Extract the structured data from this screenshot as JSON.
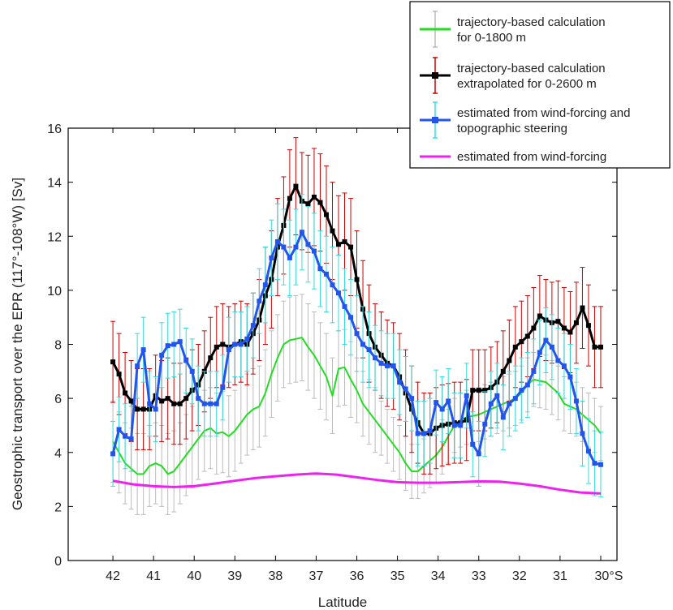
{
  "chart_data": {
    "type": "line",
    "xlabel": "Latitude",
    "ylabel": "Geostrophic transport over the EPR (117°-108°W) [Sv]",
    "xlim": [
      43.1,
      29.6
    ],
    "ylim": [
      0,
      16
    ],
    "xticks": [
      42,
      41,
      40,
      39,
      38,
      37,
      36,
      35,
      34,
      33,
      32,
      31,
      30
    ],
    "xtick_labels": [
      "42",
      "41",
      "40",
      "39",
      "38",
      "37",
      "36",
      "35",
      "34",
      "33",
      "32",
      "31",
      "30°S"
    ],
    "yticks": [
      0,
      2,
      4,
      6,
      8,
      10,
      12,
      14,
      16
    ],
    "grid": false,
    "legend_position": "top-right",
    "x": [
      42.0,
      41.85,
      41.7,
      41.55,
      41.4,
      41.25,
      41.1,
      40.95,
      40.8,
      40.65,
      40.5,
      40.35,
      40.2,
      40.05,
      39.9,
      39.75,
      39.6,
      39.45,
      39.3,
      39.15,
      39.0,
      38.85,
      38.7,
      38.55,
      38.4,
      38.25,
      38.1,
      37.95,
      37.8,
      37.65,
      37.5,
      37.35,
      37.2,
      37.05,
      36.9,
      36.75,
      36.6,
      36.45,
      36.3,
      36.15,
      36.0,
      35.85,
      35.7,
      35.55,
      35.4,
      35.25,
      35.1,
      34.95,
      34.8,
      34.65,
      34.5,
      34.35,
      34.2,
      34.05,
      33.9,
      33.75,
      33.6,
      33.45,
      33.3,
      33.15,
      33.0,
      32.85,
      32.7,
      32.55,
      32.4,
      32.25,
      32.1,
      31.95,
      31.8,
      31.65,
      31.5,
      31.35,
      31.2,
      31.05,
      30.9,
      30.75,
      30.6,
      30.45,
      30.3,
      30.15,
      30.0
    ],
    "series": [
      {
        "name": "trajectory-based calculation for 0-1800 m",
        "color": "#22dd22",
        "errorbar_color": "#bbbbbb",
        "values": [
          4.4,
          4.0,
          3.6,
          3.4,
          3.2,
          3.2,
          3.5,
          3.6,
          3.5,
          3.2,
          3.3,
          3.6,
          3.9,
          4.2,
          4.5,
          4.8,
          4.9,
          4.7,
          4.75,
          4.6,
          4.8,
          5.1,
          5.4,
          5.6,
          5.7,
          6.2,
          6.9,
          7.5,
          8.0,
          8.15,
          8.2,
          8.25,
          7.9,
          7.6,
          7.2,
          6.8,
          6.1,
          7.1,
          7.15,
          6.7,
          6.3,
          5.8,
          5.5,
          5.2,
          4.9,
          4.6,
          4.3,
          4.0,
          3.6,
          3.3,
          3.3,
          3.5,
          3.7,
          3.9,
          4.2,
          4.6,
          5.0,
          5.2,
          5.3,
          5.35,
          5.4,
          5.5,
          5.6,
          5.7,
          5.8,
          5.9,
          6.0,
          6.2,
          6.5,
          6.7,
          6.65,
          6.6,
          6.4,
          6.2,
          5.8,
          5.7,
          5.6,
          5.4,
          5.2,
          5.0,
          4.7
        ],
        "err": [
          1.5,
          1.5,
          1.5,
          1.5,
          1.5,
          1.5,
          1.5,
          1.5,
          1.5,
          1.5,
          1.5,
          1.5,
          1.5,
          1.5,
          1.5,
          1.5,
          1.5,
          1.5,
          1.5,
          1.5,
          1.5,
          1.5,
          1.5,
          1.5,
          1.5,
          1.6,
          1.6,
          1.6,
          1.6,
          1.6,
          1.6,
          1.6,
          1.6,
          1.6,
          1.6,
          1.6,
          1.4,
          1.4,
          1.4,
          1.4,
          1.2,
          1.2,
          1.2,
          1.2,
          1.0,
          1.0,
          1.0,
          1.0,
          1.0,
          1.0,
          1.0,
          1.0,
          1.0,
          1.0,
          1.0,
          1.0,
          1.0,
          1.0,
          1.0,
          1.0,
          1.0,
          1.0,
          1.0,
          1.0,
          1.0,
          1.0,
          1.0,
          1.0,
          1.0,
          1.0,
          1.0,
          1.0,
          1.0,
          1.0,
          1.0,
          1.0,
          1.0,
          1.0,
          1.0,
          1.0,
          1.0
        ]
      },
      {
        "name": "trajectory-based calculation extrapolated for 0-2600 m",
        "color": "#000000",
        "errorbar_color": "#cc0000",
        "values": [
          7.35,
          6.9,
          6.2,
          5.9,
          5.6,
          5.6,
          5.6,
          6.1,
          5.9,
          6.0,
          5.8,
          5.8,
          6.0,
          6.3,
          6.5,
          7.0,
          7.5,
          7.9,
          8.0,
          7.9,
          8.0,
          8.1,
          8.0,
          8.4,
          8.9,
          9.8,
          10.4,
          11.6,
          12.4,
          13.4,
          13.85,
          13.3,
          13.2,
          13.45,
          13.25,
          12.8,
          12.2,
          11.7,
          11.8,
          11.6,
          10.4,
          9.3,
          8.4,
          7.9,
          7.6,
          7.3,
          7.2,
          6.8,
          6.2,
          5.6,
          5.1,
          4.7,
          4.7,
          4.9,
          5.0,
          5.05,
          5.1,
          5.1,
          5.2,
          6.3,
          6.3,
          6.3,
          6.4,
          6.6,
          7.0,
          7.4,
          7.9,
          8.1,
          8.3,
          8.6,
          9.05,
          8.9,
          8.8,
          8.85,
          8.6,
          8.45,
          8.8,
          9.35,
          8.7,
          7.9,
          7.9
        ],
        "err": [
          1.5,
          1.5,
          1.5,
          1.5,
          1.5,
          1.5,
          1.5,
          1.5,
          1.5,
          1.5,
          1.5,
          1.5,
          1.5,
          1.5,
          1.5,
          1.5,
          1.5,
          1.5,
          1.5,
          1.5,
          1.5,
          1.5,
          1.5,
          1.5,
          1.5,
          1.8,
          1.8,
          1.8,
          1.8,
          1.8,
          1.8,
          1.8,
          1.8,
          1.8,
          1.8,
          1.8,
          1.8,
          1.8,
          1.8,
          1.8,
          1.8,
          1.8,
          1.8,
          1.6,
          1.6,
          1.6,
          1.6,
          1.6,
          1.6,
          1.6,
          1.5,
          1.5,
          1.5,
          1.5,
          1.5,
          1.5,
          1.5,
          1.5,
          1.5,
          1.5,
          1.5,
          1.5,
          1.5,
          1.5,
          1.5,
          1.5,
          1.5,
          1.5,
          1.5,
          1.5,
          1.5,
          1.5,
          1.5,
          1.5,
          1.5,
          1.5,
          1.5,
          1.5,
          1.5,
          1.5,
          1.5
        ]
      },
      {
        "name": "estimated from wind-forcing and topographic steering",
        "color": "#2255ee",
        "errorbar_color": "#33dddd",
        "values": [
          3.95,
          4.85,
          4.6,
          4.5,
          7.2,
          7.8,
          5.8,
          5.6,
          7.6,
          7.95,
          8.0,
          8.1,
          7.4,
          7.0,
          6.0,
          5.8,
          5.8,
          5.8,
          6.4,
          7.8,
          8.0,
          8.0,
          8.2,
          8.7,
          9.6,
          10.2,
          11.2,
          11.8,
          11.6,
          11.2,
          11.6,
          12.15,
          11.7,
          11.45,
          10.8,
          10.6,
          10.2,
          9.9,
          9.4,
          9.0,
          8.4,
          8.0,
          7.8,
          7.5,
          7.3,
          7.2,
          7.2,
          6.6,
          6.35,
          6.0,
          4.7,
          4.7,
          4.8,
          5.85,
          5.6,
          5.9,
          5.0,
          5.0,
          6.1,
          4.3,
          3.95,
          5.05,
          5.8,
          6.1,
          5.3,
          5.8,
          6.0,
          6.3,
          6.5,
          7.0,
          7.7,
          8.15,
          7.9,
          7.4,
          7.2,
          6.8,
          5.9,
          4.7,
          4.05,
          3.6,
          3.55
        ],
        "err": [
          1.2,
          1.2,
          1.2,
          1.2,
          1.2,
          1.2,
          1.2,
          1.2,
          1.2,
          1.2,
          1.2,
          1.2,
          1.2,
          1.2,
          1.2,
          1.2,
          1.2,
          1.2,
          1.2,
          1.2,
          1.2,
          1.2,
          1.2,
          1.2,
          1.2,
          1.4,
          1.4,
          1.4,
          1.4,
          1.4,
          1.4,
          1.4,
          1.4,
          1.4,
          1.4,
          1.4,
          1.4,
          1.4,
          1.4,
          1.4,
          1.4,
          1.4,
          1.4,
          1.2,
          1.2,
          1.2,
          1.2,
          1.2,
          1.2,
          1.2,
          1.2,
          1.2,
          1.2,
          1.2,
          1.2,
          1.2,
          1.2,
          1.2,
          1.2,
          1.2,
          1.2,
          1.2,
          1.2,
          1.2,
          1.2,
          1.2,
          1.2,
          1.2,
          1.2,
          1.2,
          1.2,
          1.2,
          1.2,
          1.2,
          1.2,
          1.2,
          1.2,
          1.2,
          1.2,
          1.2,
          1.2
        ]
      },
      {
        "name": "estimated from wind-forcing",
        "color": "#ee22ee",
        "x": [
          42.0,
          41.5,
          41.0,
          40.5,
          40.0,
          39.5,
          39.0,
          38.5,
          38.0,
          37.5,
          37.0,
          36.5,
          36.0,
          35.5,
          35.0,
          34.5,
          34.0,
          33.5,
          33.0,
          32.5,
          32.0,
          31.5,
          31.0,
          30.5,
          30.0
        ],
        "values": [
          2.95,
          2.82,
          2.75,
          2.72,
          2.75,
          2.85,
          2.95,
          3.05,
          3.12,
          3.18,
          3.22,
          3.18,
          3.08,
          2.98,
          2.9,
          2.88,
          2.88,
          2.9,
          2.93,
          2.92,
          2.85,
          2.75,
          2.62,
          2.52,
          2.48
        ]
      }
    ]
  }
}
